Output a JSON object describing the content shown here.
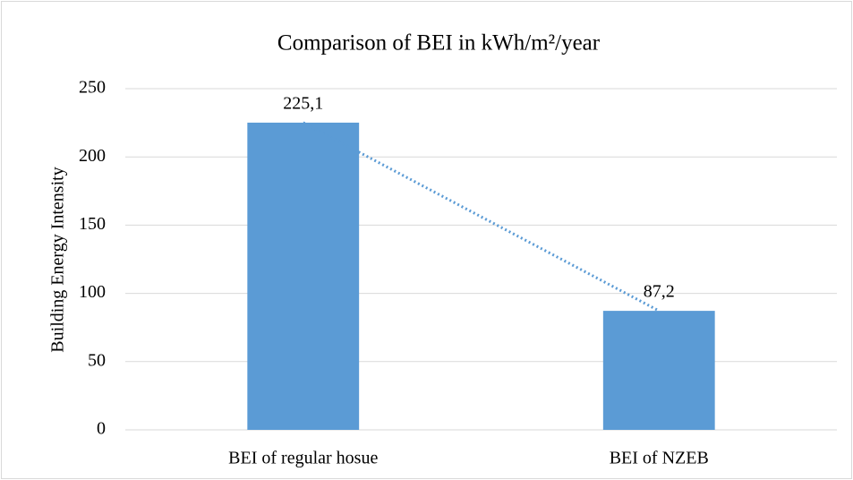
{
  "chart_data": {
    "type": "bar",
    "title": "Comparison of BEI in kWh/m²/year",
    "ylabel": "Building Energy Intensity",
    "categories": [
      "BEI of regular hosue",
      "BEI of NZEB"
    ],
    "values": [
      225.1,
      87.2
    ],
    "value_labels": [
      "225,1",
      "87,2"
    ],
    "color": "#5b9bd5",
    "trendline": true,
    "trendline_color": "#5b9bd5",
    "ylim": [
      0,
      250
    ],
    "yticks": [
      0,
      50,
      100,
      150,
      200,
      250
    ],
    "grid": true
  }
}
